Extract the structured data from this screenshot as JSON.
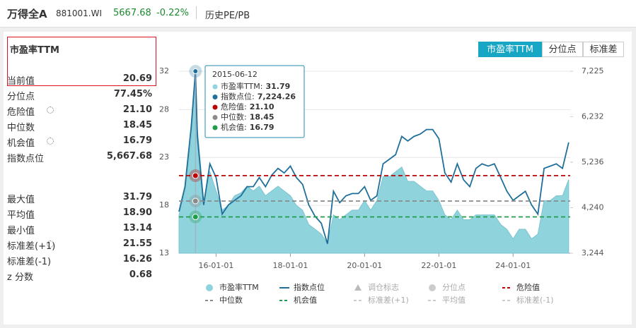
{
  "header": {
    "name": "万得全A",
    "code": "881001.WI",
    "price": "5667.68",
    "change": "-0.22%",
    "link": "历史PE/PB"
  },
  "panel": {
    "title": "市盈率TTM",
    "rows": [
      [
        "当前值",
        "20.69"
      ],
      [
        "分位点",
        "77.45%"
      ],
      [
        "危险值",
        "21.10"
      ],
      [
        "中位数",
        "18.45"
      ],
      [
        "机会值",
        "16.79"
      ],
      [
        "指数点位",
        "5,667.68"
      ]
    ],
    "stats": [
      [
        "最大值",
        "31.79"
      ],
      [
        "平均值",
        "18.90"
      ],
      [
        "最小值",
        "13.14"
      ],
      [
        "标准差(+1)",
        "21.55"
      ],
      [
        "标准差(-1)",
        "16.26"
      ],
      [
        "z 分数",
        "0.68"
      ]
    ]
  },
  "tabs": [
    "市盈率TTM",
    "分位点",
    "标准差"
  ],
  "chart_data": {
    "type": "area-line",
    "x": [
      "15-01-01",
      "15-03-01",
      "15-05-01",
      "15-06-12",
      "15-07-01",
      "15-09-01",
      "15-11-01",
      "16-01-01",
      "16-03-01",
      "16-05-01",
      "16-07-01",
      "16-09-01",
      "16-11-01",
      "17-01-01",
      "17-03-01",
      "17-05-01",
      "17-07-01",
      "17-09-01",
      "17-11-01",
      "18-01-01",
      "18-03-01",
      "18-05-01",
      "18-07-01",
      "18-09-01",
      "18-11-01",
      "19-01-01",
      "19-03-01",
      "19-05-01",
      "19-07-01",
      "19-09-01",
      "19-11-01",
      "20-01-01",
      "20-03-01",
      "20-05-01",
      "20-07-01",
      "20-09-01",
      "20-11-01",
      "21-01-01",
      "21-03-01",
      "21-05-01",
      "21-07-01",
      "21-09-01",
      "21-11-01",
      "22-01-01",
      "22-03-01",
      "22-05-01",
      "22-07-01",
      "22-09-01",
      "22-11-01",
      "23-01-01",
      "23-03-01",
      "23-05-01",
      "23-07-01",
      "23-09-01",
      "23-11-01",
      "24-01-01",
      "24-03-01",
      "24-05-01",
      "24-07-01",
      "24-09-01",
      "24-11-01",
      "25-01-01",
      "25-03-01",
      "25-05-01",
      "25-07-01"
    ],
    "series": [
      {
        "name": "市盈率TTM",
        "color": "#8fd3dc",
        "values": [
          17,
          19.5,
          25,
          31.79,
          26,
          18.5,
          21.5,
          19.5,
          17.5,
          18,
          19,
          19.3,
          20,
          19.5,
          20,
          19,
          19.5,
          20,
          19.5,
          19,
          18,
          17.5,
          16,
          15.5,
          15,
          14,
          17,
          16.5,
          17,
          17.5,
          17.5,
          18.5,
          17.5,
          18.5,
          21,
          21,
          21.5,
          22,
          20.5,
          20.5,
          20,
          19.5,
          19.5,
          18.5,
          17,
          16.5,
          17.5,
          16.5,
          16.5,
          17,
          17,
          17,
          17,
          16,
          15.5,
          14.5,
          15.5,
          15.5,
          14.5,
          15,
          18.5,
          18.5,
          19,
          19,
          20.69
        ]
      },
      {
        "name": "指数点位",
        "color": "#1f6f9a",
        "axis": "y2",
        "values": [
          4154,
          4700,
          6000,
          7224.26,
          5800,
          4300,
          5200,
          4900,
          4100,
          4300,
          4400,
          4500,
          4700,
          4700,
          4900,
          4700,
          4950,
          5100,
          5000,
          5150,
          4900,
          4750,
          4300,
          4050,
          3900,
          3450,
          4600,
          4350,
          4500,
          4550,
          4550,
          4700,
          4400,
          4500,
          5200,
          5300,
          5400,
          5800,
          5700,
          5800,
          5850,
          5950,
          5950,
          5750,
          5000,
          4800,
          5200,
          4850,
          4700,
          5100,
          5200,
          5150,
          5200,
          4900,
          4600,
          4400,
          4500,
          4600,
          4300,
          4100,
          5100,
          5150,
          5200,
          5100,
          5667.68
        ]
      }
    ],
    "reference_lines": [
      {
        "name": "危险值",
        "value": 21.1,
        "color": "#c00000"
      },
      {
        "name": "中位数",
        "value": 18.45,
        "color": "#8a8a8a"
      },
      {
        "name": "机会值",
        "value": 16.79,
        "color": "#1e9e4a"
      }
    ],
    "xlim": [
      "15-01-01",
      "25-07-16"
    ],
    "xticks": [
      "16-01-01",
      "18-01-01",
      "20-01-01",
      "22-01-01",
      "24-01-01"
    ],
    "ylim": [
      13,
      32
    ],
    "yticks": [
      13,
      18,
      23,
      28,
      32
    ],
    "y2lim": [
      3244,
      7225
    ],
    "y2ticks": [
      {
        "value": 3244,
        "label": "3,244"
      },
      {
        "value": 4240,
        "label": "4,240"
      },
      {
        "value": 5236,
        "label": "5,236"
      },
      {
        "value": 6232,
        "label": "6,232"
      },
      {
        "value": 7225,
        "label": "7,225"
      }
    ],
    "grid": true,
    "tooltip": {
      "x": "15-06-12",
      "date": "2015-06-12",
      "rows": [
        {
          "label": "市盈率TTM:",
          "value": "31.79",
          "color": "#8fd3dc"
        },
        {
          "label": "指数点位:",
          "value": "7,224.26",
          "color": "#1f6f9a"
        },
        {
          "label": "危险值:",
          "value": "21.10",
          "color": "#c00000"
        },
        {
          "label": "中位数:",
          "value": "18.45",
          "color": "#8a8a8a"
        },
        {
          "label": "机会值:",
          "value": "16.79",
          "color": "#1e9e4a"
        }
      ]
    },
    "legend": [
      {
        "name": "市盈率TTM",
        "symbol": "circle",
        "color": "#8fd3dc",
        "active": true
      },
      {
        "name": "指数点位",
        "symbol": "line",
        "color": "#1f6f9a",
        "active": true
      },
      {
        "name": "调仓标志",
        "symbol": "triangle",
        "color": "#bbbbbb",
        "active": false
      },
      {
        "name": "分位点",
        "symbol": "circle",
        "color": "#cccccc",
        "active": false
      },
      {
        "name": "危险值",
        "symbol": "dash",
        "color": "#c00000",
        "active": true
      },
      {
        "name": "中位数",
        "symbol": "dash",
        "color": "#8a8a8a",
        "active": true
      },
      {
        "name": "机会值",
        "symbol": "dash",
        "color": "#1e9e4a",
        "active": true
      },
      {
        "name": "标准差(+1)",
        "symbol": "dash",
        "color": "#cccccc",
        "active": false
      },
      {
        "name": "平均值",
        "symbol": "dash",
        "color": "#cccccc",
        "active": false
      },
      {
        "name": "标准差(-1)",
        "symbol": "dash",
        "color": "#cccccc",
        "active": false
      }
    ]
  }
}
